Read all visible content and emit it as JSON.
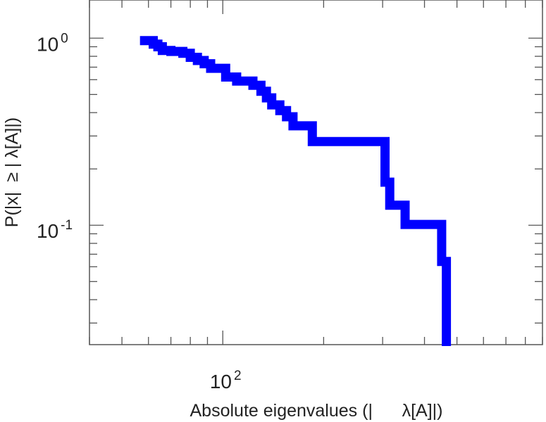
{
  "chart_data": {
    "type": "line",
    "step": true,
    "xscale": "log",
    "yscale": "log",
    "xlabel": "Absolute eigenvalues (|      λ[A]|)",
    "ylabel": "P(|x|  ≥ | λ[A]|)",
    "xlim": [
      40,
      900
    ],
    "ylim": [
      0.023,
      1.6
    ],
    "x_ticks": [
      {
        "base": "10",
        "exp": "2",
        "value": 100
      }
    ],
    "y_ticks": [
      {
        "base": "10",
        "exp": "0",
        "value": 1
      },
      {
        "base": "10",
        "exp": "-1",
        "value": 0.1
      }
    ],
    "grid": false,
    "legend": "none",
    "line_color": "#0000ff",
    "series": [
      {
        "x": [
          60,
          62,
          64,
          66,
          70,
          76,
          80,
          84,
          88,
          92,
          102,
          110,
          123,
          130,
          135,
          140,
          148,
          155,
          162,
          185,
          305,
          315,
          350,
          450,
          465
        ],
        "y": [
          0.97,
          0.93,
          0.9,
          0.86,
          0.85,
          0.83,
          0.79,
          0.76,
          0.73,
          0.69,
          0.62,
          0.59,
          0.56,
          0.52,
          0.48,
          0.44,
          0.41,
          0.38,
          0.34,
          0.28,
          0.17,
          0.128,
          0.101,
          0.064,
          0.023
        ]
      }
    ]
  }
}
